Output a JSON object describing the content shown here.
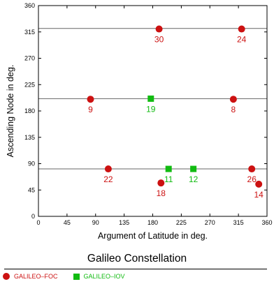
{
  "colors": {
    "foc": "#cc1111",
    "iov": "#11bb11",
    "plane_line": "#666666",
    "axis": "#000000"
  },
  "caption": "Galileo Constellation",
  "chart_data": {
    "type": "scatter",
    "title": "",
    "xlabel": "Argument of Latitude in deg.",
    "ylabel": "Ascending Node in deg.",
    "xlim": [
      0,
      360
    ],
    "ylim": [
      0,
      360
    ],
    "x_ticks": [
      0,
      45,
      90,
      135,
      180,
      225,
      270,
      315,
      360
    ],
    "y_ticks": [
      0,
      45,
      90,
      135,
      180,
      225,
      270,
      315,
      360
    ],
    "grid": false,
    "reference_lines_y": [
      81,
      201,
      321
    ],
    "legend_position": "bottom",
    "series": [
      {
        "name": "GALILEO–FOC",
        "marker": "circle",
        "points": [
          {
            "label": "30",
            "x": 190,
            "y": 320
          },
          {
            "label": "24",
            "x": 320,
            "y": 320
          },
          {
            "label": "9",
            "x": 82,
            "y": 200
          },
          {
            "label": "8",
            "x": 307,
            "y": 200
          },
          {
            "label": "22",
            "x": 110,
            "y": 81
          },
          {
            "label": "18",
            "x": 193,
            "y": 57
          },
          {
            "label": "26",
            "x": 336,
            "y": 81
          },
          {
            "label": "14",
            "x": 347,
            "y": 55
          }
        ]
      },
      {
        "name": "GALILEO–IOV",
        "marker": "square",
        "points": [
          {
            "label": "19",
            "x": 177,
            "y": 201
          },
          {
            "label": "11",
            "x": 205,
            "y": 81
          },
          {
            "label": "12",
            "x": 244,
            "y": 81
          }
        ]
      }
    ]
  }
}
